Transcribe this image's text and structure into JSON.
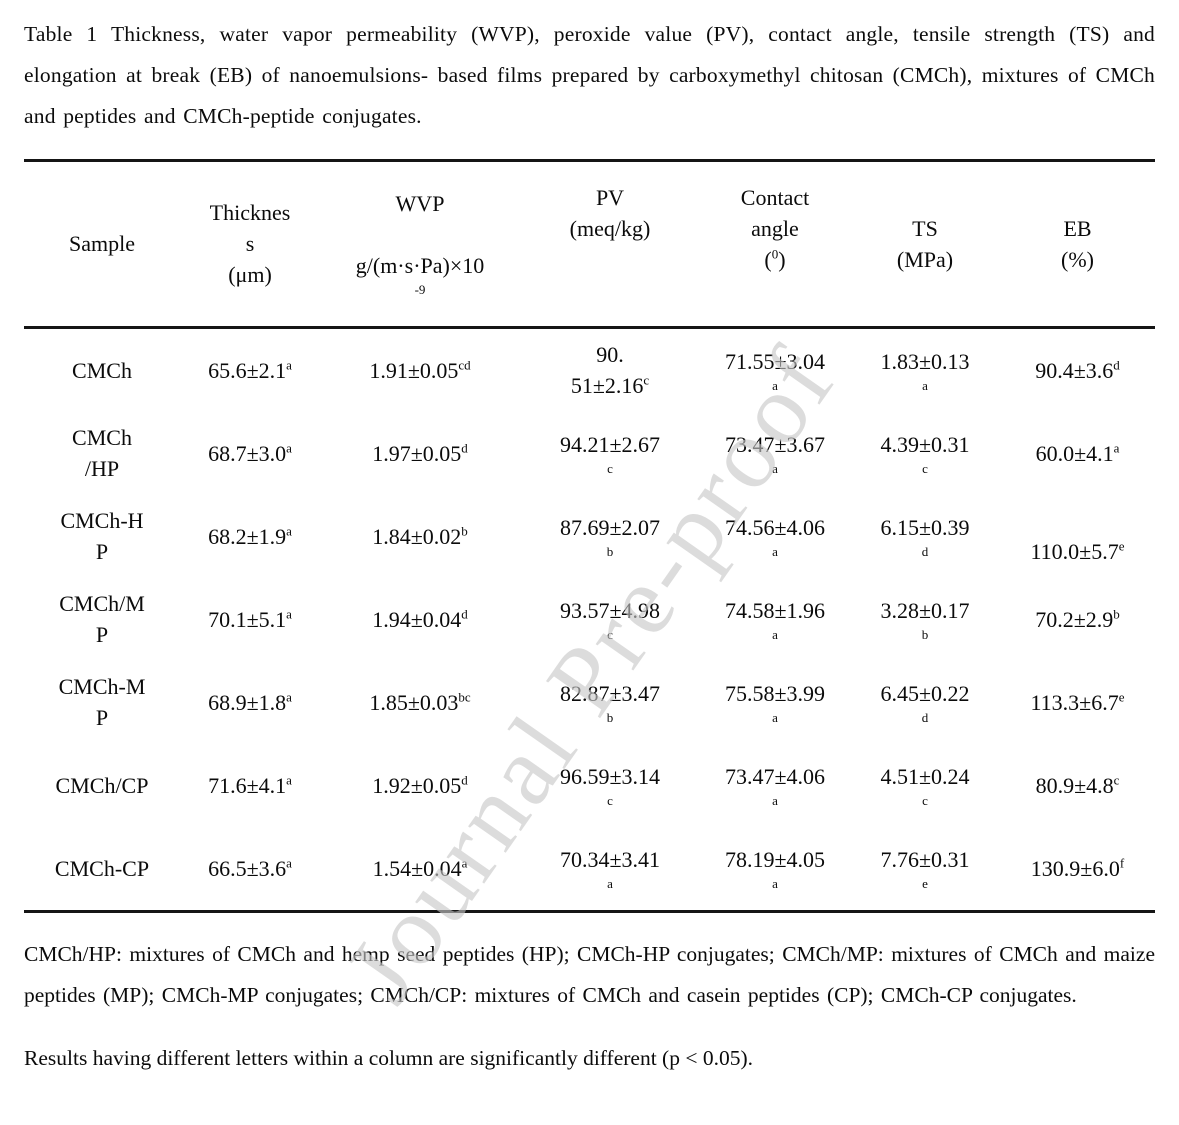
{
  "caption": "Table 1 Thickness, water vapor permeability (WVP), peroxide value (PV), contact angle, tensile strength (TS) and elongation at break (EB) of nanoemulsions- based films prepared by carboxymethyl chitosan (CMCh), mixtures of CMCh and peptides and CMCh-peptide conjugates.",
  "watermark": {
    "text": "Journal Pre-proof",
    "color": "#c7c7c7"
  },
  "table": {
    "headers": [
      {
        "name": "sample",
        "lines": [
          "Sample"
        ]
      },
      {
        "name": "thickness",
        "lines": [
          "Thicknes",
          "s",
          "(μm)"
        ]
      },
      {
        "name": "wvp",
        "lines": [
          "WVP",
          "",
          "g/(m·s·Pa)×10",
          "^{-9}"
        ]
      },
      {
        "name": "pv",
        "lines": [
          "PV",
          "(meq/kg)",
          "",
          ""
        ]
      },
      {
        "name": "contact-angle",
        "lines": [
          "Contact",
          "angle",
          "(^{0})",
          ""
        ]
      },
      {
        "name": "ts",
        "lines": [
          "TS",
          "(MPa)"
        ]
      },
      {
        "name": "eb",
        "lines": [
          "EB",
          "(%)"
        ]
      }
    ],
    "rows": [
      {
        "cells": [
          [
            "CMCh"
          ],
          [
            "65.6±2.1^{a}"
          ],
          [
            "1.91±0.05^{cd}"
          ],
          [
            "90.",
            "51±2.16^{c}"
          ],
          [
            "71.55±3.04",
            "^{a}"
          ],
          [
            "1.83±0.13",
            "^{a}"
          ],
          [
            "90.4±3.6^{d}"
          ]
        ]
      },
      {
        "cells": [
          [
            "CMCh",
            "/HP"
          ],
          [
            "68.7±3.0^{a}"
          ],
          [
            "1.97±0.05^{d}"
          ],
          [
            "94.21±2.67",
            "^{c}"
          ],
          [
            "73.47±3.67",
            "^{a}"
          ],
          [
            "4.39±0.31",
            "^{c}"
          ],
          [
            "60.0±4.1^{a}"
          ]
        ]
      },
      {
        "cells": [
          [
            "CMCh-H",
            "P"
          ],
          [
            "68.2±1.9^{a}"
          ],
          [
            "1.84±0.02^{b}"
          ],
          [
            "87.69±2.07",
            "^{b}"
          ],
          [
            "74.56±4.06",
            "^{a}"
          ],
          [
            "6.15±0.39",
            "^{d}"
          ],
          [
            "",
            "110.0±5.7^{e}"
          ]
        ]
      },
      {
        "cells": [
          [
            "CMCh/M",
            "P"
          ],
          [
            "70.1±5.1^{a}"
          ],
          [
            "1.94±0.04^{d}"
          ],
          [
            "93.57±4.98",
            "^{c}"
          ],
          [
            "74.58±1.96",
            "^{a}"
          ],
          [
            "3.28±0.17",
            "^{b}"
          ],
          [
            "70.2±2.9^{b}"
          ]
        ]
      },
      {
        "cells": [
          [
            "CMCh-M",
            "P"
          ],
          [
            "68.9±1.8^{a}"
          ],
          [
            "1.85±0.03^{bc}"
          ],
          [
            "82.87±3.47",
            "^{b}"
          ],
          [
            "75.58±3.99",
            "^{a}"
          ],
          [
            "6.45±0.22",
            "^{d}"
          ],
          [
            "113.3±6.7^{e}"
          ]
        ]
      },
      {
        "cells": [
          [
            "CMCh/CP"
          ],
          [
            "71.6±4.1^{a}"
          ],
          [
            "1.92±0.05^{d}"
          ],
          [
            "96.59±3.14",
            "^{c}"
          ],
          [
            "73.47±4.06",
            "^{a}"
          ],
          [
            "4.51±0.24",
            "^{c}"
          ],
          [
            "80.9±4.8^{c}"
          ]
        ]
      },
      {
        "cells": [
          [
            "CMCh-CP"
          ],
          [
            "66.5±3.6^{a}"
          ],
          [
            "1.54±0.04^{a}"
          ],
          [
            "70.34±3.41",
            "^{a}"
          ],
          [
            "78.19±4.05",
            "^{a}"
          ],
          [
            "7.76±0.31",
            "^{e}"
          ],
          [
            "130.9±6.0^{f}"
          ]
        ]
      }
    ]
  },
  "notes": {
    "definitions": "CMCh/HP: mixtures of CMCh and hemp seed peptides (HP); CMCh-HP conjugates; CMCh/MP: mixtures of CMCh and maize peptides (MP); CMCh-MP conjugates; CMCh/CP: mixtures of CMCh and casein peptides (CP); CMCh-CP conjugates.",
    "significance": "Results having different letters within a column are significantly different (p < 0.05)."
  }
}
